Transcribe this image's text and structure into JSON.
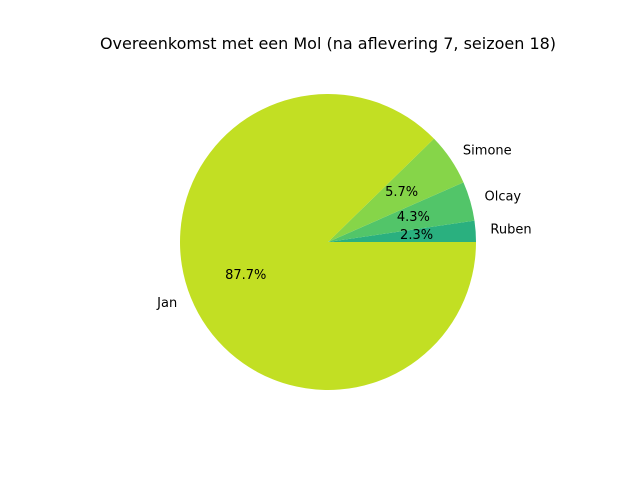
{
  "chart_data": {
    "type": "pie",
    "title": "Overeenkomst met een Mol (na aflevering 7, seizoen 18)",
    "slices": [
      {
        "label": "Ruben",
        "value": 2.3,
        "pct_label": "2.3%",
        "color": "#2ab07f"
      },
      {
        "label": "Olcay",
        "value": 4.3,
        "pct_label": "4.3%",
        "color": "#52c569"
      },
      {
        "label": "Simone",
        "value": 5.7,
        "pct_label": "5.7%",
        "color": "#86d549"
      },
      {
        "label": "Jan",
        "value": 87.7,
        "pct_label": "87.7%",
        "color": "#c2df23"
      }
    ],
    "start_angle_deg": 0,
    "direction": "counterclockwise"
  }
}
